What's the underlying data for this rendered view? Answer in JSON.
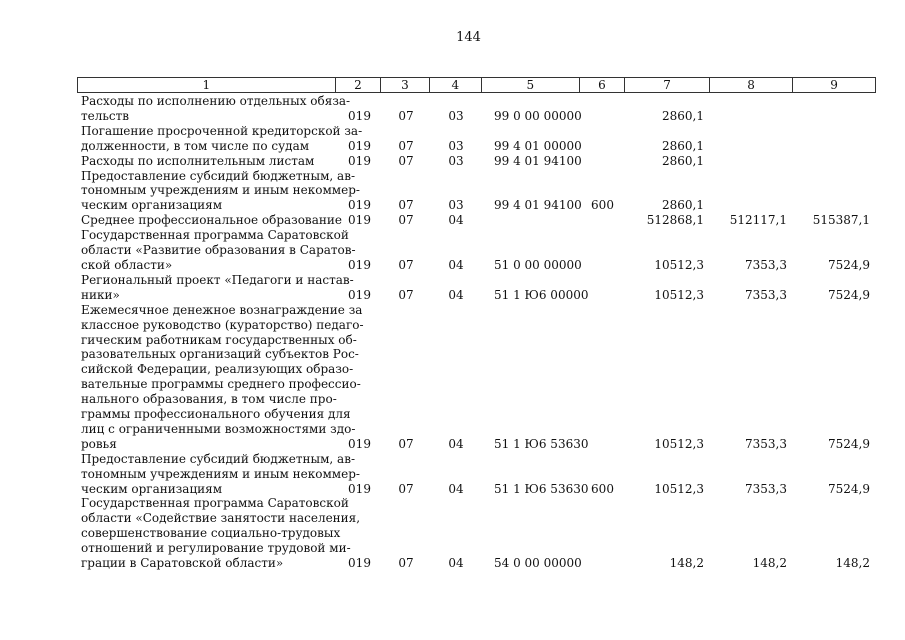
{
  "page_number": "144",
  "header": [
    "1",
    "2",
    "3",
    "4",
    "5",
    "6",
    "7",
    "8",
    "9"
  ],
  "rows": [
    {
      "name": [
        "Расходы по исполнению отдельных обяза-",
        "тельств"
      ],
      "c2": "019",
      "c3": "07",
      "c4": "03",
      "c5": "99 0 00 00000",
      "c6": "",
      "c7": "2860,1",
      "c8": "",
      "c9": ""
    },
    {
      "name": [
        "Погашение просроченной кредиторской за-",
        "долженности, в том числе по судам"
      ],
      "c2": "019",
      "c3": "07",
      "c4": "03",
      "c5": "99 4 01 00000",
      "c6": "",
      "c7": "2860,1",
      "c8": "",
      "c9": ""
    },
    {
      "name": [
        "Расходы по исполнительным листам"
      ],
      "c2": "019",
      "c3": "07",
      "c4": "03",
      "c5": "99 4 01 94100",
      "c6": "",
      "c7": "2860,1",
      "c8": "",
      "c9": ""
    },
    {
      "name": [
        "Предоставление субсидий бюджетным, ав-",
        "тономным учреждениям и иным некоммер-",
        "ческим организациям"
      ],
      "c2": "019",
      "c3": "07",
      "c4": "03",
      "c5": "99 4 01 94100",
      "c6": "600",
      "c7": "2860,1",
      "c8": "",
      "c9": ""
    },
    {
      "name": [
        "Среднее профессиональное образование"
      ],
      "c2": "019",
      "c3": "07",
      "c4": "04",
      "c5": "",
      "c6": "",
      "c7": "512868,1",
      "c8": "512117,1",
      "c9": "515387,1"
    },
    {
      "name": [
        "Государственная программа Саратовской",
        "области «Развитие образования в Саратов-",
        "ской области»"
      ],
      "c2": "019",
      "c3": "07",
      "c4": "04",
      "c5": "51 0 00 00000",
      "c6": "",
      "c7": "10512,3",
      "c8": "7353,3",
      "c9": "7524,9"
    },
    {
      "name": [
        "Региональный проект «Педагоги и настав-",
        "ники»"
      ],
      "c2": "019",
      "c3": "07",
      "c4": "04",
      "c5": "51 1 Ю6 00000",
      "c6": "",
      "c7": "10512,3",
      "c8": "7353,3",
      "c9": "7524,9"
    },
    {
      "name": [
        "Ежемесячное денежное вознаграждение за",
        "классное руководство (кураторство) педаго-",
        "гическим работникам государственных об-",
        "разовательных организаций субъектов Рос-",
        "сийской Федерации, реализующих образо-",
        "вательные программы среднего профессио-",
        "нального образования, в том числе про-",
        "граммы профессионального обучения для",
        "лиц с ограниченными возможностями здо-",
        "ровья"
      ],
      "c2": "019",
      "c3": "07",
      "c4": "04",
      "c5": "51 1 Ю6 53630",
      "c6": "",
      "c7": "10512,3",
      "c8": "7353,3",
      "c9": "7524,9"
    },
    {
      "name": [
        "Предоставление субсидий бюджетным, ав-",
        "тономным учреждениям и иным некоммер-",
        "ческим организациям"
      ],
      "c2": "019",
      "c3": "07",
      "c4": "04",
      "c5": "51 1 Ю6 53630",
      "c6": "600",
      "c7": "10512,3",
      "c8": "7353,3",
      "c9": "7524,9"
    },
    {
      "name": [
        "Государственная программа Саратовской",
        "области «Содействие занятости населения,",
        "совершенствование социально-трудовых",
        "отношений и регулирование трудовой ми-",
        "грации в Саратовской области»"
      ],
      "c2": "019",
      "c3": "07",
      "c4": "04",
      "c5": "54 0 00 00000",
      "c6": "",
      "c7": "148,2",
      "c8": "148,2",
      "c9": "148,2"
    }
  ]
}
